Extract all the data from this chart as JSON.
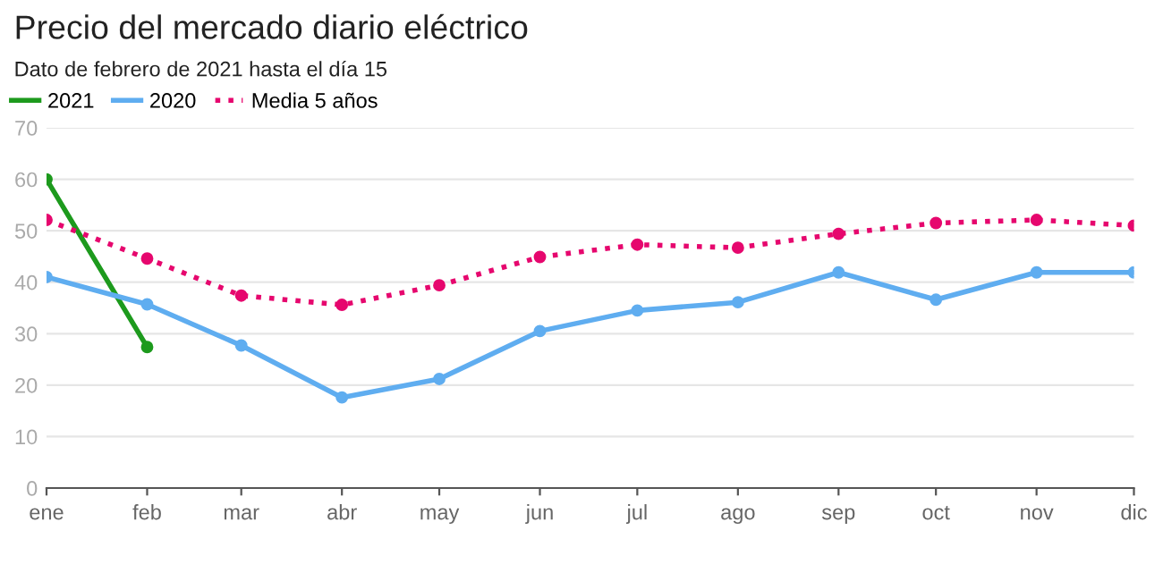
{
  "chart_data": {
    "type": "line",
    "title": "Precio del mercado diario eléctrico",
    "subtitle": "Dato de febrero de 2021 hasta el día 15",
    "x": [
      "2020-01",
      "2020-02",
      "2020-03",
      "2020-04",
      "2020-05",
      "2020-06",
      "2020-07",
      "2020-08",
      "2020-09",
      "2020-10",
      "2020-11",
      "2020-12"
    ],
    "series": [
      {
        "name": "2021",
        "color": "#1d9a1d",
        "x": [
          "2020-01",
          "2020-02"
        ],
        "values": [
          60,
          27.4
        ],
        "line_style": "solid"
      },
      {
        "name": "2020",
        "color": "#5fadf0",
        "values": [
          41,
          35.7,
          27.7,
          17.6,
          21.2,
          30.5,
          34.5,
          36.1,
          41.9,
          36.6,
          41.9,
          41.9
        ],
        "line_style": "solid"
      },
      {
        "name": "Media 5 años",
        "color": "#e6076e",
        "values": [
          52.1,
          44.6,
          37.4,
          35.6,
          39.4,
          44.9,
          47.3,
          46.7,
          49.4,
          51.5,
          52.1,
          51.0
        ],
        "line_style": "dotted"
      }
    ],
    "xlim": [
      "2020-01",
      "2020-12"
    ],
    "xticks": [
      {
        "value": "2020-01",
        "label": "ene"
      },
      {
        "value": "2020-02",
        "label": "feb"
      },
      {
        "value": "2020-03",
        "label": "mar"
      },
      {
        "value": "2020-04",
        "label": "abr"
      },
      {
        "value": "2020-05",
        "label": "may"
      },
      {
        "value": "2020-06",
        "label": "jun"
      },
      {
        "value": "2020-07",
        "label": "jul"
      },
      {
        "value": "2020-08",
        "label": "ago"
      },
      {
        "value": "2020-09",
        "label": "sep"
      },
      {
        "value": "2020-10",
        "label": "oct"
      },
      {
        "value": "2020-11",
        "label": "nov"
      },
      {
        "value": "2020-12",
        "label": "dic"
      }
    ],
    "ylim": [
      0,
      70
    ],
    "yticks": [
      0,
      10,
      20,
      30,
      40,
      50,
      60,
      70
    ],
    "grid": "y",
    "legend": "top left",
    "marker": "circle"
  }
}
